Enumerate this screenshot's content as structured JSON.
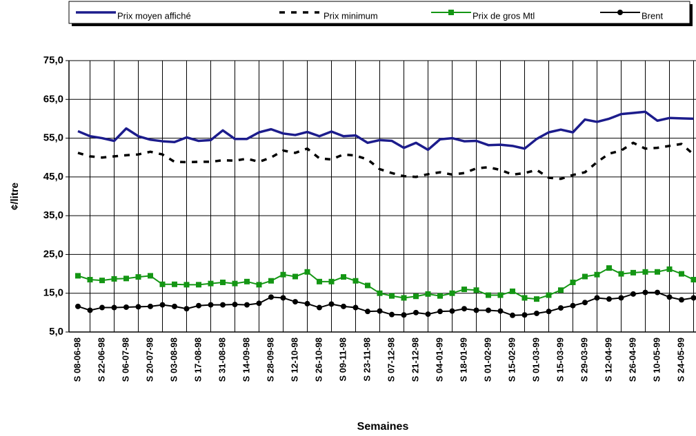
{
  "chart_data": {
    "type": "line",
    "x_label": "Semaines",
    "y_label": "¢/litre",
    "categories": [
      "S 08-06-98",
      null,
      "S 22-06-98",
      null,
      "S 06-07-98",
      null,
      "S 20-07-98",
      null,
      "S 03-08-98",
      null,
      "S 17-08-98",
      null,
      "S 31-08-98",
      null,
      "S 14-09-98",
      null,
      "S 28-09-98",
      null,
      "S 12-10-98",
      null,
      "S 26-10-98",
      null,
      "S 09-11-98",
      null,
      "S 23-11-98",
      null,
      "S 07-12-98",
      null,
      "S 21-12-98",
      null,
      "S 04-01-99",
      null,
      "S 18-01-99",
      null,
      "S 01-02-99",
      null,
      "S 15-02-99",
      null,
      "S 01-03-99",
      null,
      "S 15-03-99",
      null,
      "S 29-03-99",
      null,
      "S 12-04-99",
      null,
      "S 26-04-99",
      null,
      "S 10-05-99",
      null,
      "S 24-05-99",
      null
    ],
    "series": [
      {
        "name": "Prix moyen affiché",
        "color": "#1c1c8c",
        "style": "solid",
        "marker": "none",
        "values": [
          56.8,
          55.5,
          55.0,
          54.3,
          57.5,
          55.5,
          54.6,
          54.2,
          54.0,
          55.2,
          54.3,
          54.5,
          57.0,
          54.8,
          54.8,
          56.5,
          57.3,
          56.2,
          55.8,
          56.6,
          55.5,
          56.7,
          55.5,
          55.7,
          53.8,
          54.5,
          54.3,
          52.5,
          53.8,
          52.0,
          54.7,
          55.0,
          54.2,
          54.3,
          53.2,
          53.3,
          53.0,
          52.3,
          54.8,
          56.5,
          57.2,
          56.5,
          59.8,
          59.2,
          60.0,
          61.2,
          61.5,
          61.8,
          59.5,
          60.2,
          60.1,
          60.0
        ]
      },
      {
        "name": "Prix minimum",
        "color": "#000000",
        "style": "dashed",
        "marker": "none",
        "values": [
          51.2,
          50.3,
          50.0,
          50.3,
          50.6,
          50.8,
          51.5,
          50.8,
          48.9,
          48.8,
          48.9,
          48.9,
          49.3,
          49.2,
          49.7,
          48.9,
          50.0,
          51.8,
          51.2,
          52.3,
          49.8,
          49.5,
          50.8,
          50.5,
          49.5,
          47.0,
          46.0,
          45.2,
          45.0,
          45.7,
          46.2,
          45.6,
          46.0,
          47.2,
          47.5,
          46.8,
          45.6,
          46.0,
          46.8,
          44.8,
          44.5,
          45.5,
          46.2,
          48.8,
          51.0,
          51.8,
          53.8,
          52.3,
          52.5,
          53.0,
          53.5,
          50.8
        ]
      },
      {
        "name": "Prix de gros Mtl",
        "color": "#149614",
        "style": "solid",
        "marker": "square",
        "values": [
          19.5,
          18.5,
          18.3,
          18.7,
          18.8,
          19.2,
          19.5,
          17.3,
          17.3,
          17.2,
          17.2,
          17.5,
          17.8,
          17.5,
          18.0,
          17.2,
          18.2,
          19.8,
          19.3,
          20.5,
          18.0,
          18.0,
          19.2,
          18.2,
          17.0,
          15.0,
          14.3,
          13.8,
          14.2,
          14.8,
          14.3,
          15.0,
          16.0,
          15.8,
          14.5,
          14.5,
          15.5,
          13.8,
          13.5,
          14.5,
          15.8,
          17.8,
          19.3,
          19.8,
          21.5,
          20.0,
          20.3,
          20.5,
          20.5,
          21.2,
          20.0,
          18.5
        ]
      },
      {
        "name": "Brent",
        "color": "#000000",
        "style": "solid",
        "marker": "circle",
        "values": [
          11.6,
          10.6,
          11.3,
          11.3,
          11.4,
          11.5,
          11.6,
          12.0,
          11.6,
          11.0,
          11.8,
          12.0,
          12.0,
          12.1,
          12.0,
          12.4,
          14.0,
          13.8,
          12.8,
          12.3,
          11.3,
          12.2,
          11.6,
          11.3,
          10.3,
          10.4,
          9.5,
          9.4,
          10.0,
          9.6,
          10.3,
          10.4,
          11.0,
          10.6,
          10.6,
          10.4,
          9.3,
          9.4,
          9.8,
          10.3,
          11.2,
          11.8,
          12.6,
          13.8,
          13.5,
          13.8,
          14.8,
          15.2,
          15.2,
          14.0,
          13.3,
          13.8
        ]
      }
    ],
    "ylim": [
      5,
      75
    ],
    "yticks": [
      {
        "value": 5,
        "label": "5,0"
      },
      {
        "value": 15,
        "label": "15,0"
      },
      {
        "value": 25,
        "label": "25,0"
      },
      {
        "value": 35,
        "label": "35,0"
      },
      {
        "value": 45,
        "label": "45,0"
      },
      {
        "value": 55,
        "label": "55,0"
      },
      {
        "value": 65,
        "label": "65,0"
      },
      {
        "value": 75,
        "label": "75,0"
      }
    ],
    "grid": true,
    "legend": "top"
  }
}
